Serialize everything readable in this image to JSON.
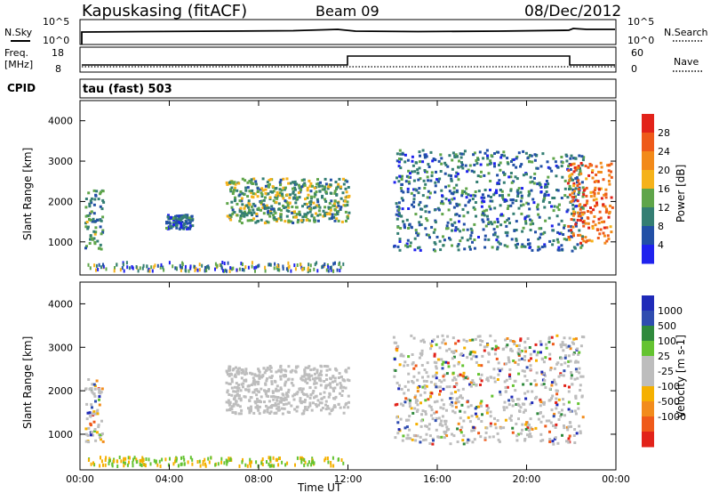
{
  "header": {
    "station": "Kapuskasing (fitACF)",
    "beam": "Beam 09",
    "date": "08/Dec/2012"
  },
  "aux_panels": {
    "nsky_label": "N.Sky",
    "nsearch_label": "N.Search",
    "noise_ticks": [
      "10^5",
      "10^0"
    ],
    "freq_label": "Freq.",
    "freq_unit": "[MHz]",
    "freq_ticks": [
      "18",
      "8"
    ],
    "nave_label": "Nave",
    "nave_ticks": [
      "60",
      "0"
    ],
    "cpid_label": "CPID",
    "cpid_value": "tau (fast) 503"
  },
  "colors": {
    "power_scale": [
      "#1f22ee",
      "#2250a6",
      "#347e73",
      "#5fa54a",
      "#f5b21a",
      "#f28a1a",
      "#ee5a1a",
      "#e2231a"
    ],
    "velocity_scale": [
      "#e2231a",
      "#ef5a1a",
      "#f28c1c",
      "#f5b000",
      "#bdbdbd",
      "#bdbdbd",
      "#64c331",
      "#2f8a3c",
      "#2f4db0",
      "#1f2ab8"
    ],
    "ground_scatter": "#bdbdbd"
  },
  "chart_data": [
    {
      "type": "heatmap",
      "name": "power",
      "ylabel": "Slant Range [km]",
      "xlabel": "Time UT",
      "xticks": [
        "00:00",
        "04:00",
        "08:00",
        "12:00",
        "16:00",
        "20:00",
        "00:00"
      ],
      "xlim": [
        0,
        24
      ],
      "yticks": [
        1000,
        2000,
        3000,
        4000
      ],
      "ylim": [
        180,
        4500
      ],
      "colorbar": {
        "label": "Power [dB]",
        "ticks": [
          4,
          8,
          12,
          16,
          20,
          24,
          28
        ],
        "range": [
          0,
          32
        ]
      },
      "echo_regions": [
        {
          "t_start": 0.2,
          "t_end": 1.0,
          "r_start": 850,
          "r_end": 2300,
          "level": 10
        },
        {
          "t_start": 3.8,
          "t_end": 5.0,
          "r_start": 1350,
          "r_end": 1700,
          "level": 6
        },
        {
          "t_start": 6.5,
          "t_end": 12.0,
          "r_start": 1500,
          "r_end": 2600,
          "level": 12
        },
        {
          "t_start": 14.0,
          "t_end": 22.5,
          "r_start": 800,
          "r_end": 3300,
          "level": 8
        },
        {
          "t_start": 21.8,
          "t_end": 23.8,
          "r_start": 1000,
          "r_end": 3000,
          "level": 24
        }
      ]
    },
    {
      "type": "heatmap",
      "name": "velocity",
      "ylabel": "Slant Range [km]",
      "xlabel": "Time UT",
      "xticks": [
        "00:00",
        "04:00",
        "08:00",
        "12:00",
        "16:00",
        "20:00",
        "00:00"
      ],
      "xlim": [
        0,
        24
      ],
      "yticks": [
        1000,
        2000,
        3000,
        4000
      ],
      "ylim": [
        180,
        4500
      ],
      "colorbar": {
        "label": "Velocity [m s-1]",
        "ticks": [
          1000,
          500,
          100,
          25,
          -25,
          -100,
          -500,
          -1000
        ]
      },
      "echo_regions": [
        {
          "t_start": 0.2,
          "t_end": 1.0,
          "r_start": 850,
          "r_end": 2300,
          "kind": "mixed"
        },
        {
          "t_start": 6.5,
          "t_end": 12.0,
          "r_start": 1500,
          "r_end": 2600,
          "kind": "ground"
        },
        {
          "t_start": 14.0,
          "t_end": 22.5,
          "r_start": 800,
          "r_end": 3300,
          "kind": "mixed"
        }
      ]
    }
  ]
}
